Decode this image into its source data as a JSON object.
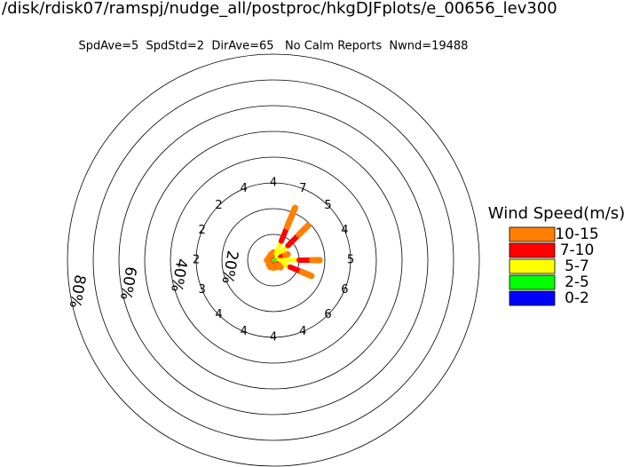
{
  "chart_data": {
    "type": "windrose",
    "title": "/disk/rdisk07/ramspj/nudge_all/postproc/hkgDJFplots/e_00656_lev300",
    "subtitle": "SpdAve=5  SpdStd=2  DirAve=65   No Calm Reports  Nwnd=19488",
    "legend_title": "Wind Speed(m/s)",
    "rlim": [
      0,
      80
    ],
    "rgrid": [
      10,
      20,
      30,
      40,
      50,
      60,
      70,
      80
    ],
    "rticks": [
      {
        "value": 20,
        "label": "20%"
      },
      {
        "value": 40,
        "label": "40%"
      },
      {
        "value": 60,
        "label": "60%"
      },
      {
        "value": 80,
        "label": "80%"
      }
    ],
    "speed_labels": [
      "4",
      "7",
      "5",
      "4",
      "5",
      "6",
      "6",
      "4",
      "4",
      "4",
      "4",
      "3",
      "2",
      "2",
      "2",
      "4"
    ],
    "series": [
      {
        "name": "0-2",
        "color": "#0000ff",
        "values": [
          0,
          0,
          0,
          0,
          0,
          0,
          0,
          0,
          0,
          0,
          0,
          0,
          0,
          0,
          0,
          0
        ]
      },
      {
        "name": "2-5",
        "color": "#00ff00",
        "values": [
          1,
          2,
          2,
          1,
          2,
          2,
          1,
          1,
          1,
          1,
          1,
          0.5,
          0.5,
          0.5,
          0.5,
          1
        ]
      },
      {
        "name": "5-7",
        "color": "#ffff00",
        "values": [
          1,
          6,
          6,
          2,
          8,
          5,
          1,
          0.5,
          0.5,
          0.5,
          0.5,
          0.5,
          0.5,
          0.5,
          0.5,
          0.5
        ]
      },
      {
        "name": "7-10",
        "color": "#ff0000",
        "values": [
          0.5,
          6,
          6,
          2,
          5,
          5,
          1,
          0.5,
          0.5,
          0.5,
          0.5,
          0.5,
          0.5,
          0.5,
          0.5,
          0.5
        ]
      },
      {
        "name": "10-15",
        "color": "#ff8000",
        "values": [
          0.5,
          8,
          5,
          1,
          3,
          4,
          1,
          1,
          1,
          1,
          0.5,
          0.5,
          1,
          0.5,
          0.5,
          0.5
        ]
      }
    ]
  }
}
